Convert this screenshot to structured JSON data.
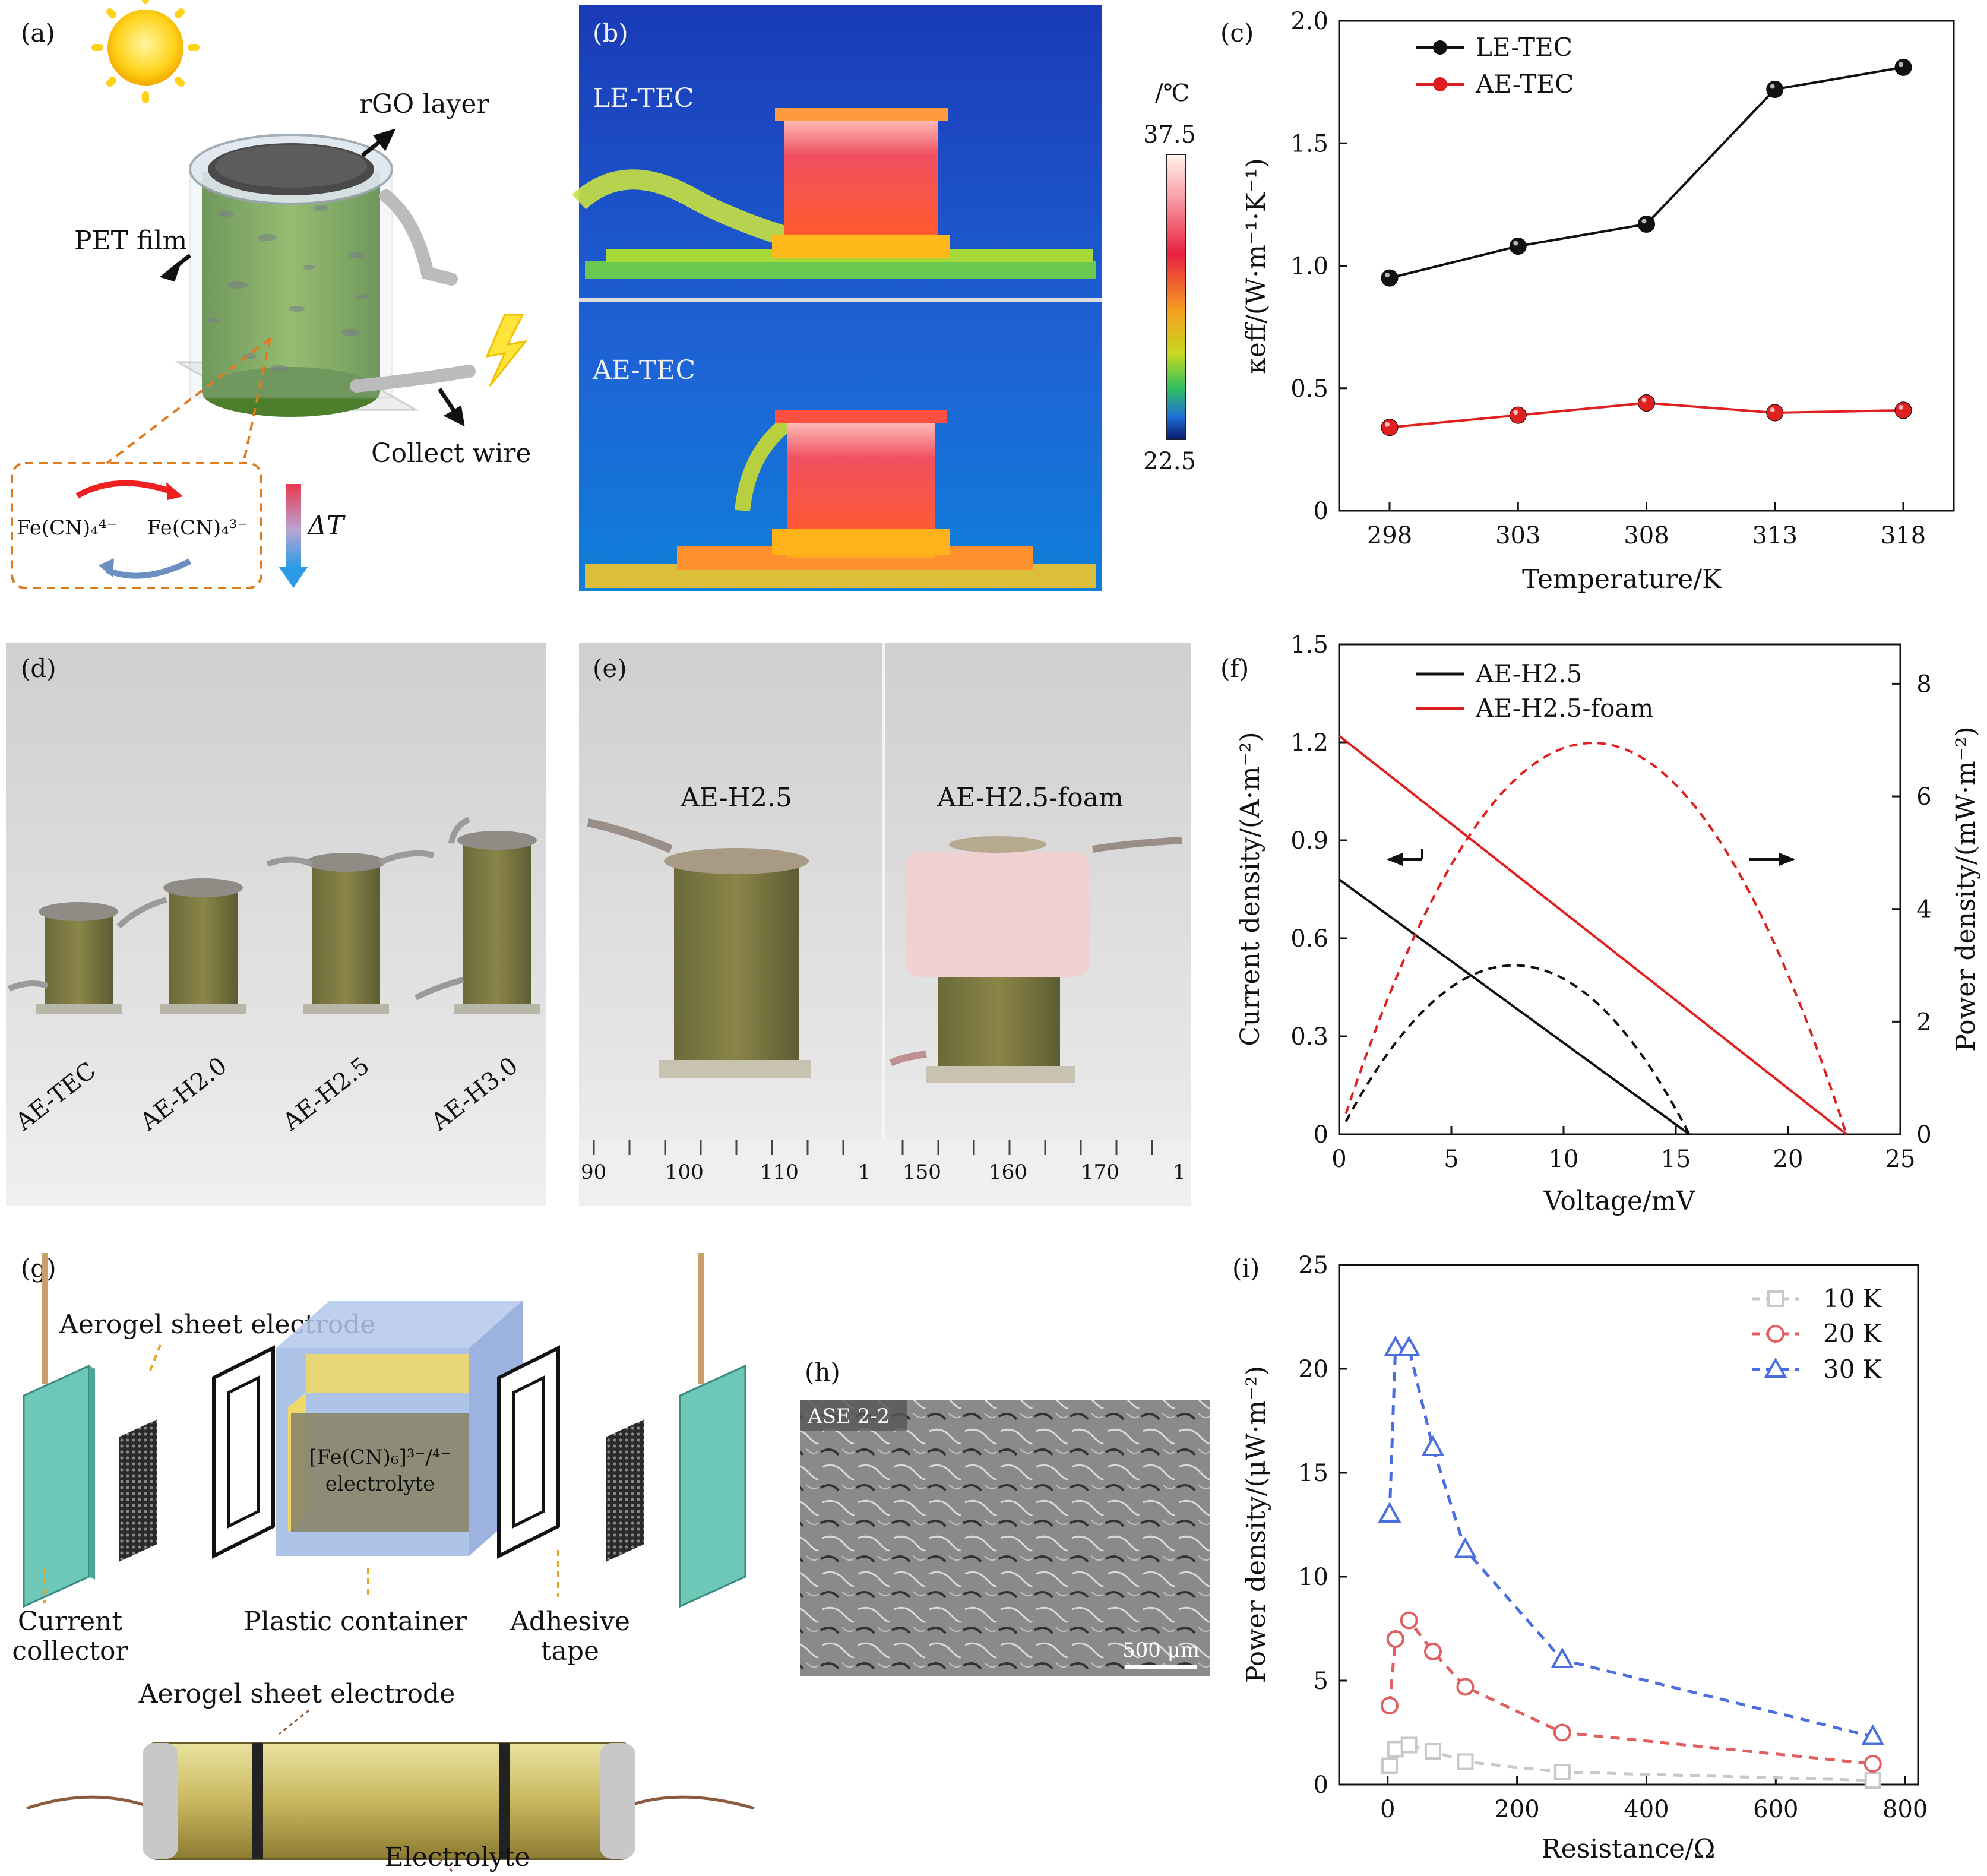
{
  "panels": {
    "a": {
      "label": "(a)",
      "rgo": "rGO layer",
      "pet": "PET film",
      "wire": "Collect wire",
      "fe4": "Fe(CN)₄⁴⁻",
      "fe3": "Fe(CN)₄³⁻",
      "dt": "ΔT"
    },
    "b": {
      "label": "(b)",
      "top": "LE-TEC",
      "bottom": "AE-TEC",
      "unit": "/℃",
      "cmax": "37.5",
      "cmin": "22.5"
    },
    "c": {
      "label": "(c)"
    },
    "d": {
      "label": "(d)",
      "samples": [
        "AE-TEC",
        "AE-H2.0",
        "AE-H2.5",
        "AE-H3.0"
      ]
    },
    "e": {
      "label": "(e)",
      "left": "AE-H2.5",
      "right": "AE-H2.5-foam",
      "ruler_left": [
        "90",
        "100",
        "110",
        "1"
      ],
      "ruler_right": [
        "150",
        "160",
        "170",
        "1"
      ]
    },
    "f": {
      "label": "(f)"
    },
    "g": {
      "label": "(g)",
      "aerogel": "Aerogel sheet electrode",
      "electrolyte_box1": "[Fe(CN)₆]³⁻/⁴⁻",
      "electrolyte_box2": "electrolyte",
      "current1": "Current",
      "current2": "collector",
      "plastic": "Plastic container",
      "tape1": "Adhesive",
      "tape2": "tape",
      "aerogel2": "Aerogel sheet electrode",
      "electrolyte": "Electrolyte"
    },
    "h": {
      "label": "(h)",
      "tag": "ASE 2-2",
      "scale": "500 μm"
    },
    "i": {
      "label": "(i)"
    }
  },
  "chart_data": [
    {
      "id": "c",
      "type": "line",
      "xlabel": "Temperature/K",
      "ylabel": "κeff/(W·m⁻¹·K⁻¹)",
      "categories": [
        "298",
        "303",
        "308",
        "313",
        "318"
      ],
      "ylim": [
        0,
        2.0
      ],
      "yticks": [
        "0",
        "0.5",
        "1.0",
        "1.5",
        "2.0"
      ],
      "series": [
        {
          "name": "LE-TEC",
          "color": "#111111",
          "values": [
            0.95,
            1.08,
            1.17,
            1.72,
            1.81
          ]
        },
        {
          "name": "AE-TEC",
          "color": "#e02020",
          "values": [
            0.34,
            0.39,
            0.44,
            0.4,
            0.41
          ]
        }
      ]
    },
    {
      "id": "f",
      "type": "line",
      "xlabel": "Voltage/mV",
      "ylabel": "Current density/(A·m⁻²)",
      "y2label": "Power density/(mW·m⁻²)",
      "xlim": [
        0,
        25
      ],
      "xticks": [
        "0",
        "5",
        "10",
        "15",
        "20",
        "25"
      ],
      "ylim": [
        0,
        1.5
      ],
      "yticks": [
        "0",
        "0.3",
        "0.6",
        "0.9",
        "1.2",
        "1.5"
      ],
      "y2lim": [
        0,
        8.7
      ],
      "y2ticks": [
        "0",
        "2",
        "4",
        "6",
        "8"
      ],
      "series": [
        {
          "name": "AE-H2.5",
          "color": "#111111",
          "voc": 15.6,
          "isc": 0.78,
          "pmax": 3.0
        },
        {
          "name": "AE-H2.5-foam",
          "color": "#e02020",
          "voc": 22.6,
          "isc": 1.22,
          "pmax": 6.95
        }
      ]
    },
    {
      "id": "i",
      "type": "line",
      "xlabel": "Resistance/Ω",
      "ylabel": "Power density/(μW·m⁻²)",
      "xlim": [
        -75,
        820
      ],
      "xticks": [
        "0",
        "200",
        "400",
        "600",
        "800"
      ],
      "ylim": [
        0,
        25
      ],
      "yticks": [
        "0",
        "5",
        "10",
        "15",
        "20",
        "25"
      ],
      "series": [
        {
          "name": "10 K",
          "color": "#c8c8c8",
          "marker": "square",
          "x": [
            3,
            12,
            33,
            70,
            120,
            270,
            750
          ],
          "y": [
            0.9,
            1.7,
            1.9,
            1.6,
            1.1,
            0.6,
            0.2
          ]
        },
        {
          "name": "20 K",
          "color": "#e06060",
          "marker": "circle",
          "x": [
            3,
            12,
            33,
            70,
            120,
            270,
            750
          ],
          "y": [
            3.8,
            7.0,
            7.9,
            6.4,
            4.7,
            2.5,
            1.0
          ]
        },
        {
          "name": "30 K",
          "color": "#4a6ee0",
          "marker": "triangle",
          "x": [
            3,
            12,
            33,
            70,
            120,
            270,
            750
          ],
          "y": [
            13.0,
            21.0,
            21.0,
            16.2,
            11.3,
            6.0,
            2.3
          ]
        }
      ]
    }
  ]
}
